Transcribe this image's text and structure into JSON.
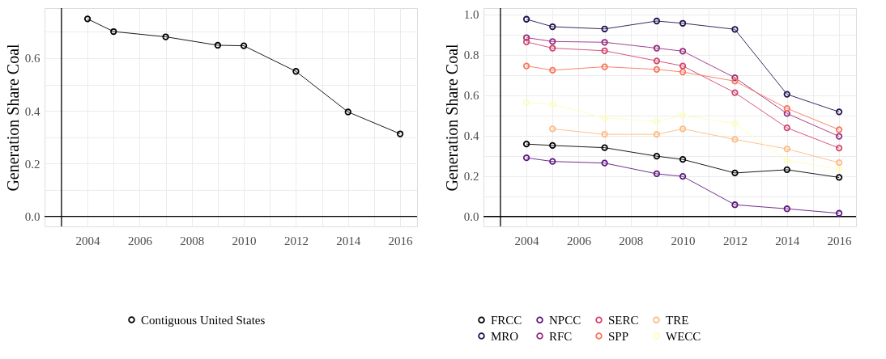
{
  "chart_data": [
    {
      "type": "line",
      "ylabel": "Generation Share Coal",
      "x": [
        2004,
        2005,
        2007,
        2009,
        2010,
        2012,
        2014,
        2016
      ],
      "series": [
        {
          "name": "Contiguous United States",
          "color": "#000000",
          "values": [
            0.749,
            0.701,
            0.681,
            0.649,
            0.647,
            0.55,
            0.396,
            0.313
          ]
        }
      ],
      "xlim": [
        2002.35,
        2016.65
      ],
      "ylim": [
        -0.038,
        0.79
      ],
      "xticks": [
        2004,
        {
          "value": 2005,
          "label": null
        },
        2006,
        {
          "value": 2007,
          "label": null
        },
        2008,
        {
          "value": 2009,
          "label": null
        },
        2010,
        {
          "value": 2011,
          "label": null
        },
        2012,
        {
          "value": 2013,
          "label": null
        },
        2014,
        {
          "value": 2015,
          "label": null
        },
        2016
      ],
      "yticks": [
        {
          "value": 0,
          "label": "0.0"
        },
        {
          "value": 0.1,
          "label": null
        },
        {
          "value": 0.2,
          "label": "0.2"
        },
        {
          "value": 0.3,
          "label": null
        },
        {
          "value": 0.4,
          "label": "0.4"
        },
        {
          "value": 0.5,
          "label": null
        },
        {
          "value": 0.6,
          "label": "0.6"
        },
        {
          "value": 0.7,
          "label": null
        }
      ],
      "ref_lines": [
        {
          "axis": "y",
          "value": 0,
          "color": "#000000"
        },
        {
          "axis": "x",
          "value": 2003,
          "color": "#000000"
        }
      ],
      "grid": true,
      "legend": "bottom",
      "marker": "circle",
      "line_style": "solid"
    },
    {
      "type": "line",
      "ylabel": "Generation Share Coal",
      "x": [
        2004,
        2005,
        2007,
        2009,
        2010,
        2012,
        2014,
        2016
      ],
      "series": [
        {
          "name": "FRCC",
          "color": "#000004",
          "values": [
            0.358,
            0.351,
            0.34,
            0.298,
            0.282,
            0.215,
            0.231,
            0.193
          ]
        },
        {
          "name": "MRO",
          "color": "#221150",
          "values": [
            0.975,
            0.938,
            0.927,
            0.966,
            0.955,
            0.925,
            0.604,
            0.517
          ]
        },
        {
          "name": "NPCC",
          "color": "#5f187f",
          "values": [
            0.29,
            0.272,
            0.264,
            0.211,
            0.198,
            0.058,
            0.038,
            0.016
          ]
        },
        {
          "name": "RFC",
          "color": "#982d80",
          "values": [
            0.884,
            0.865,
            0.861,
            0.832,
            0.817,
            0.686,
            0.509,
            0.396
          ]
        },
        {
          "name": "SERC",
          "color": "#d3436e",
          "values": [
            0.863,
            0.832,
            0.819,
            0.769,
            0.744,
            0.612,
            0.438,
            0.338
          ]
        },
        {
          "name": "SPP",
          "color": "#f8765c",
          "values": [
            0.744,
            0.723,
            0.74,
            0.727,
            0.714,
            0.669,
            0.534,
            0.429
          ]
        },
        {
          "name": "TRE",
          "color": "#febA80",
          "values": [
            null,
            0.433,
            0.406,
            0.406,
            0.433,
            0.381,
            0.334,
            0.266
          ]
        },
        {
          "name": "WECC",
          "color": "#fcfdbf",
          "values": [
            0.563,
            0.554,
            0.487,
            0.47,
            0.499,
            0.46,
            0.277,
            0.234
          ]
        }
      ],
      "xlim": [
        2002.35,
        2016.65
      ],
      "ylim": [
        -0.049,
        1.03
      ],
      "xticks": [
        2004,
        {
          "value": 2005,
          "label": null
        },
        2006,
        {
          "value": 2007,
          "label": null
        },
        2008,
        {
          "value": 2009,
          "label": null
        },
        2010,
        {
          "value": 2011,
          "label": null
        },
        2012,
        {
          "value": 2013,
          "label": null
        },
        2014,
        {
          "value": 2015,
          "label": null
        },
        2016
      ],
      "yticks": [
        {
          "value": 0,
          "label": "0.0"
        },
        {
          "value": 0.1,
          "label": null
        },
        {
          "value": 0.2,
          "label": "0.2"
        },
        {
          "value": 0.3,
          "label": null
        },
        {
          "value": 0.4,
          "label": "0.4"
        },
        {
          "value": 0.5,
          "label": null
        },
        {
          "value": 0.6,
          "label": "0.6"
        },
        {
          "value": 0.7,
          "label": null
        },
        {
          "value": 0.8,
          "label": "0.8"
        },
        {
          "value": 0.9,
          "label": null
        },
        {
          "value": 1,
          "label": "1.0"
        }
      ],
      "ref_lines": [
        {
          "axis": "y",
          "value": 0,
          "color": "#000000"
        },
        {
          "axis": "x",
          "value": 2003,
          "color": "#000000"
        }
      ],
      "grid": true,
      "legend": "bottom",
      "marker": "circle",
      "line_style": "solid"
    }
  ]
}
